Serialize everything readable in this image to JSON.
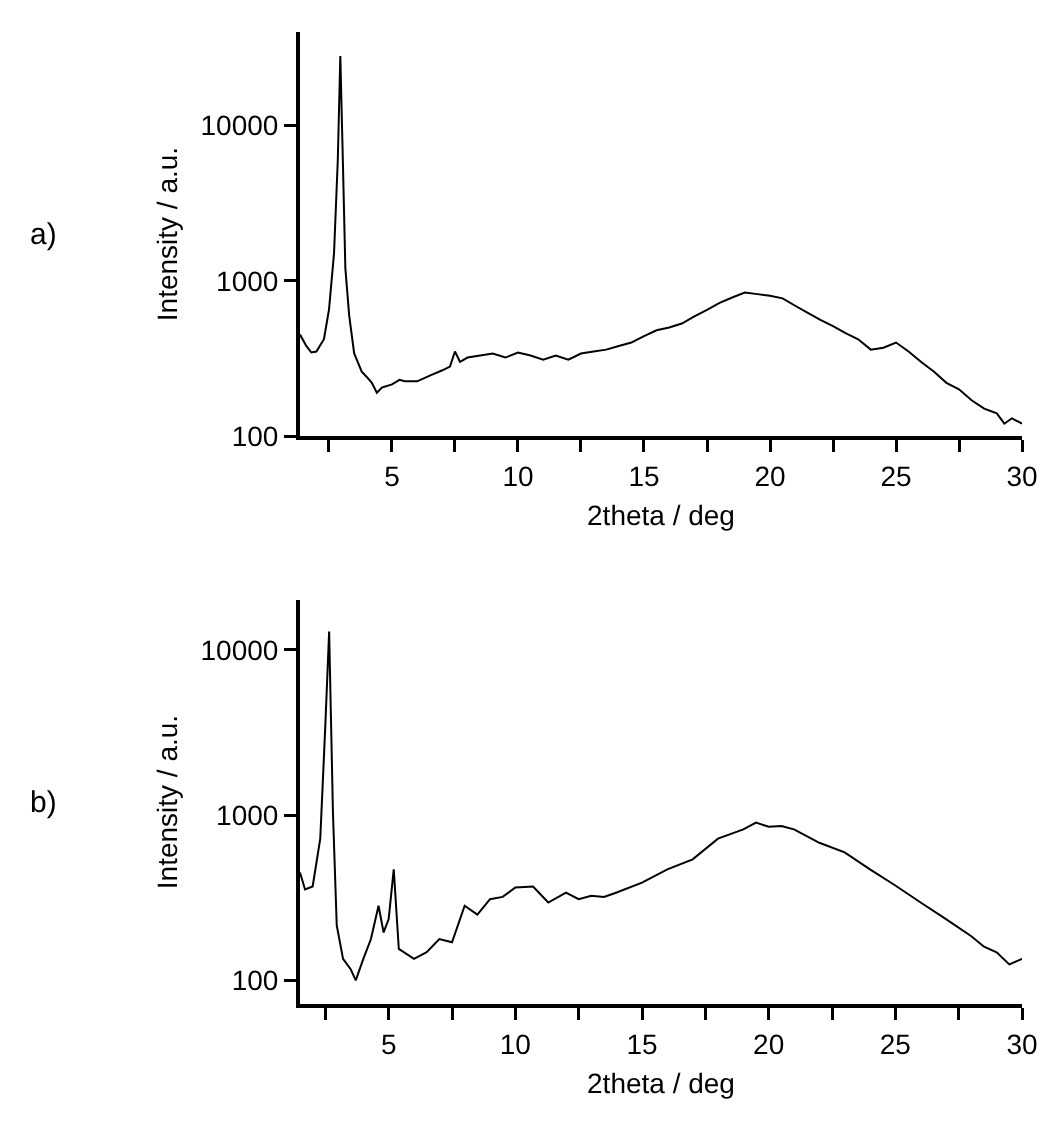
{
  "chart_data": [
    {
      "type": "line",
      "xlabel": "2theta / deg",
      "ylabel": "Intensity / a.u.",
      "annotations": [
        "a)"
      ],
      "log": "y",
      "grid": false,
      "marker": "none",
      "line_style": "solid",
      "xlim": [
        1.35,
        30
      ],
      "ylim": [
        100,
        40000
      ],
      "xticks": [
        {
          "value": 2.5,
          "label": null
        },
        5,
        {
          "value": 7.5,
          "label": null
        },
        10,
        {
          "value": 12.5,
          "label": null
        },
        15,
        {
          "value": 17.5,
          "label": null
        },
        20,
        {
          "value": 22.5,
          "label": null
        },
        25,
        {
          "value": 27.5,
          "label": null
        },
        30
      ],
      "yticks": [
        100,
        1000,
        10000
      ],
      "series": [
        {
          "color": "#000000",
          "x": [
            1.35,
            1.6,
            1.8,
            2.0,
            2.3,
            2.5,
            2.7,
            2.85,
            2.95,
            3.05,
            3.15,
            3.3,
            3.5,
            3.8,
            4.0,
            4.2,
            4.4,
            4.6,
            5.0,
            5.3,
            5.5,
            6.0,
            6.5,
            7.0,
            7.3,
            7.5,
            7.7,
            8.0,
            8.5,
            9.0,
            9.5,
            10.0,
            10.5,
            11.0,
            11.5,
            12.0,
            12.5,
            13.0,
            13.5,
            14.0,
            14.5,
            15.0,
            15.5,
            16.0,
            16.5,
            17.0,
            17.5,
            18.0,
            18.5,
            19.0,
            19.5,
            20.0,
            20.5,
            21.0,
            21.5,
            22.0,
            22.5,
            23.0,
            23.5,
            24.0,
            24.5,
            25.0,
            25.5,
            26.0,
            26.5,
            27.0,
            27.5,
            28.0,
            28.5,
            29.0,
            29.3,
            29.6,
            30.0
          ],
          "values": [
            450,
            380,
            345,
            350,
            420,
            650,
            1500,
            6000,
            28000,
            6000,
            1200,
            600,
            340,
            260,
            240,
            220,
            190,
            205,
            215,
            230,
            225,
            225,
            245,
            265,
            280,
            350,
            300,
            320,
            330,
            340,
            320,
            345,
            330,
            310,
            330,
            310,
            340,
            350,
            360,
            380,
            400,
            440,
            480,
            500,
            530,
            590,
            650,
            720,
            780,
            840,
            820,
            800,
            770,
            690,
            620,
            560,
            510,
            460,
            420,
            360,
            370,
            400,
            350,
            300,
            260,
            220,
            200,
            170,
            150,
            140,
            120,
            130,
            120
          ]
        }
      ]
    },
    {
      "type": "line",
      "xlabel": "2theta / deg",
      "ylabel": "Intensity / a.u.",
      "annotations": [
        "b)"
      ],
      "log": "y",
      "grid": false,
      "marker": "none",
      "line_style": "solid",
      "xlim": [
        1.5,
        30
      ],
      "ylim": [
        72,
        20000
      ],
      "xticks": [
        {
          "value": 2.5,
          "label": null
        },
        5,
        {
          "value": 7.5,
          "label": null
        },
        10,
        {
          "value": 12.5,
          "label": null
        },
        15,
        {
          "value": 17.5,
          "label": null
        },
        20,
        {
          "value": 22.5,
          "label": null
        },
        25,
        {
          "value": 27.5,
          "label": null
        },
        30
      ],
      "yticks": [
        100,
        1000,
        10000
      ],
      "series": [
        {
          "color": "#000000",
          "x": [
            1.5,
            1.7,
            2.0,
            2.3,
            2.5,
            2.65,
            2.8,
            2.95,
            3.2,
            3.5,
            3.7,
            4.0,
            4.3,
            4.6,
            4.8,
            5.0,
            5.2,
            5.4,
            6.0,
            6.5,
            7.0,
            7.5,
            8.0,
            8.5,
            9.0,
            9.5,
            10.0,
            10.7,
            11.3,
            12.0,
            12.5,
            13.0,
            13.5,
            14.0,
            15.0,
            16.0,
            17.0,
            18.0,
            19.0,
            19.5,
            20.0,
            20.5,
            21.0,
            22.0,
            23.0,
            24.0,
            25.0,
            26.0,
            27.0,
            28.0,
            28.5,
            29.0,
            29.5,
            30.0
          ],
          "values": [
            450,
            355,
            370,
            720,
            3500,
            12900,
            1040,
            215,
            135,
            117,
            100,
            135,
            178,
            283,
            195,
            235,
            470,
            155,
            135,
            148,
            178,
            170,
            283,
            250,
            310,
            320,
            365,
            370,
            296,
            340,
            310,
            325,
            320,
            340,
            390,
            470,
            540,
            720,
            820,
            900,
            850,
            860,
            820,
            680,
            595,
            470,
            375,
            296,
            235,
            185,
            160,
            148,
            125,
            135
          ]
        }
      ]
    }
  ]
}
